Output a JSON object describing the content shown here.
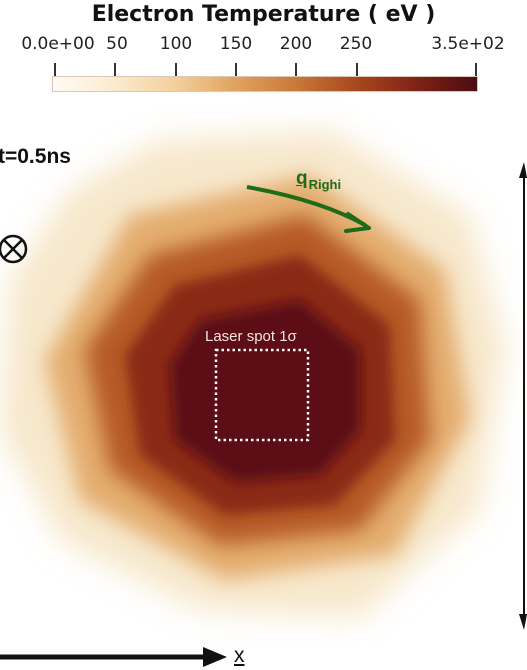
{
  "colorbar": {
    "title": "Electron Temperature ( eV )",
    "tick_labels": [
      "0.0e+00",
      "50",
      "100",
      "150",
      "200",
      "250",
      "3.5e+02"
    ],
    "range": [
      0,
      350
    ],
    "colors": [
      "#fffbf4",
      "#f3cf9c",
      "#c97a37",
      "#7f2216",
      "#4b0c12"
    ]
  },
  "annotations": {
    "time": "t=0.5ns",
    "heat_flux_symbol": "q",
    "heat_flux_subscript": "Righi",
    "laser_spot": "Laser spot 1σ",
    "axis_x": "x"
  },
  "colors": {
    "arrow_green": "#1e6b1a",
    "core": "#4b0c12",
    "spot_outline": "#ffffff"
  },
  "icons": [
    "otimes-icon",
    "curved-arrow-icon",
    "x-axis-arrow-icon",
    "vertical-scale-arrow-icon"
  ]
}
